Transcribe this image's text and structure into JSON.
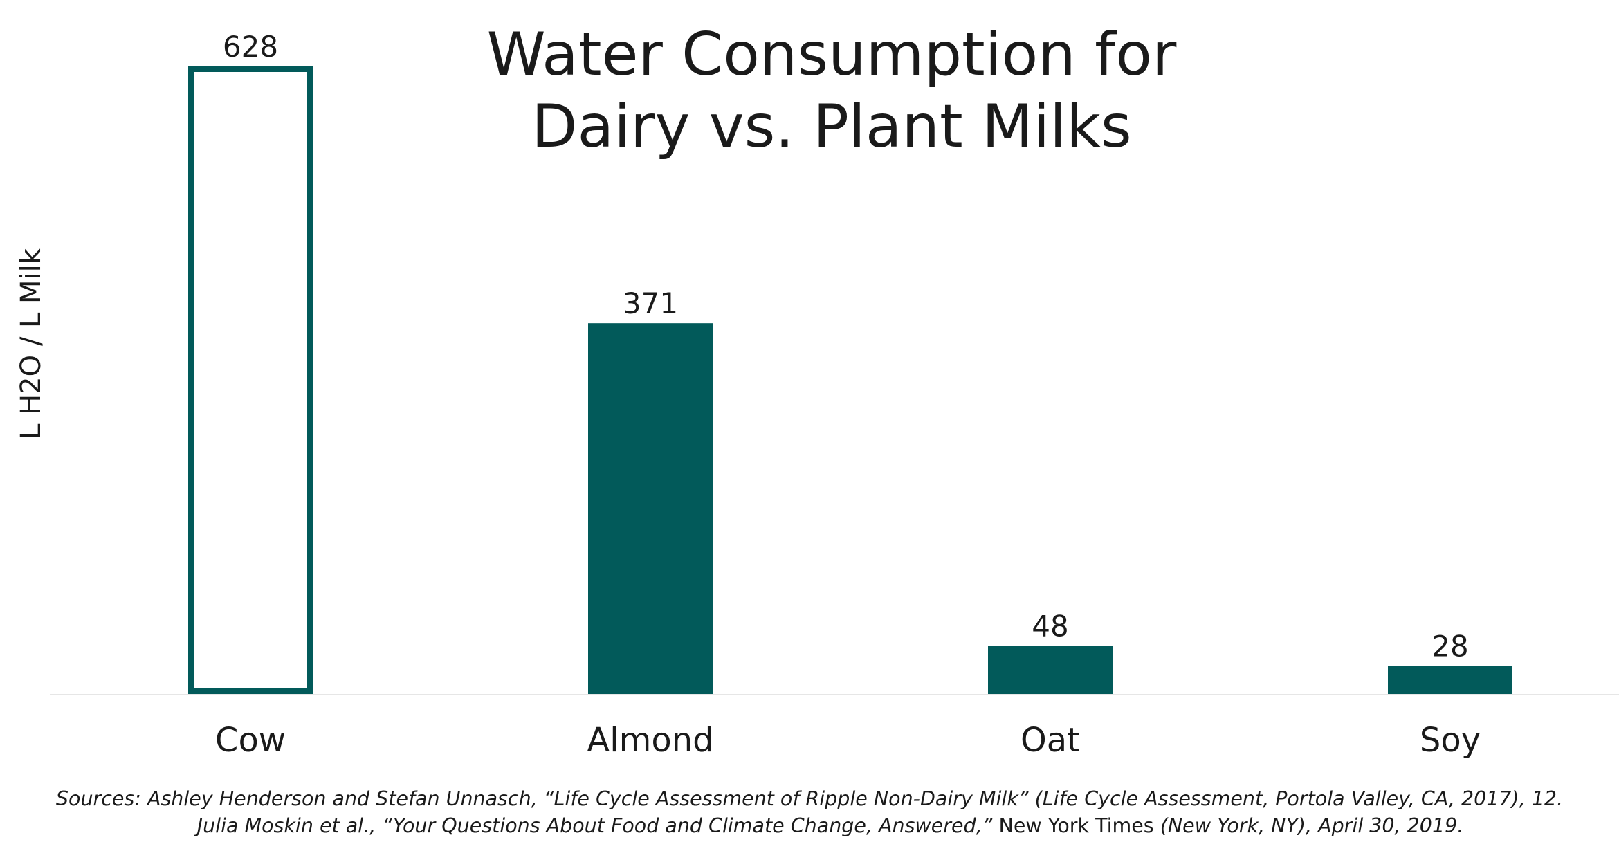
{
  "chart_data": {
    "type": "bar",
    "title": [
      "Water Consumption for",
      "Dairy vs. Plant Milks"
    ],
    "ylabel": "L H2O / L Milk",
    "xlabel": "",
    "categories": [
      "Cow",
      "Almond",
      "Oat",
      "Soy"
    ],
    "values": [
      628,
      371,
      48,
      28
    ],
    "data_labels": [
      "628",
      "371",
      "48",
      "28"
    ],
    "ylim": [
      0,
      628
    ],
    "grid": false,
    "legend": "none",
    "bar_styles": [
      "outline",
      "filled",
      "filled",
      "filled"
    ],
    "colors": {
      "bar": "#025a5a",
      "axis": "#e6e6e6",
      "text": "#1a1a1a"
    }
  },
  "sources": {
    "line1": "Sources: Ashley Henderson and Stefan Unnasch, “Life Cycle Assessment of Ripple Non-Dairy Milk” (Life Cycle Assessment, Portola Valley, CA, 2017), 12.",
    "line2_a": "Julia Moskin et al., “Your Questions About Food and Climate Change, Answered,” ",
    "line2_b": "New York Times",
    "line2_c": " (New York, NY), April 30, 2019."
  }
}
